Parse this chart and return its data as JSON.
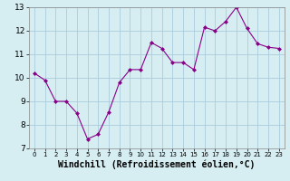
{
  "x": [
    0,
    1,
    2,
    3,
    4,
    5,
    6,
    7,
    8,
    9,
    10,
    11,
    12,
    13,
    14,
    15,
    16,
    17,
    18,
    19,
    20,
    21,
    22,
    23
  ],
  "y": [
    10.2,
    9.9,
    9.0,
    9.0,
    8.5,
    7.4,
    7.6,
    8.55,
    9.8,
    10.35,
    10.35,
    11.5,
    11.25,
    10.65,
    10.65,
    10.35,
    12.15,
    12.0,
    12.4,
    13.0,
    12.1,
    11.45,
    11.3,
    11.25
  ],
  "line_color": "#880088",
  "marker": "D",
  "marker_size": 2,
  "bg_color": "#d6eef2",
  "grid_color": "#aaccdd",
  "xlabel": "Windchill (Refroidissement éolien,°C)",
  "xlabel_fontsize": 7,
  "xlim": [
    -0.5,
    23.5
  ],
  "ylim": [
    7,
    13
  ],
  "yticks": [
    7,
    8,
    9,
    10,
    11,
    12,
    13
  ],
  "xticks": [
    0,
    1,
    2,
    3,
    4,
    5,
    6,
    7,
    8,
    9,
    10,
    11,
    12,
    13,
    14,
    15,
    16,
    17,
    18,
    19,
    20,
    21,
    22,
    23
  ]
}
